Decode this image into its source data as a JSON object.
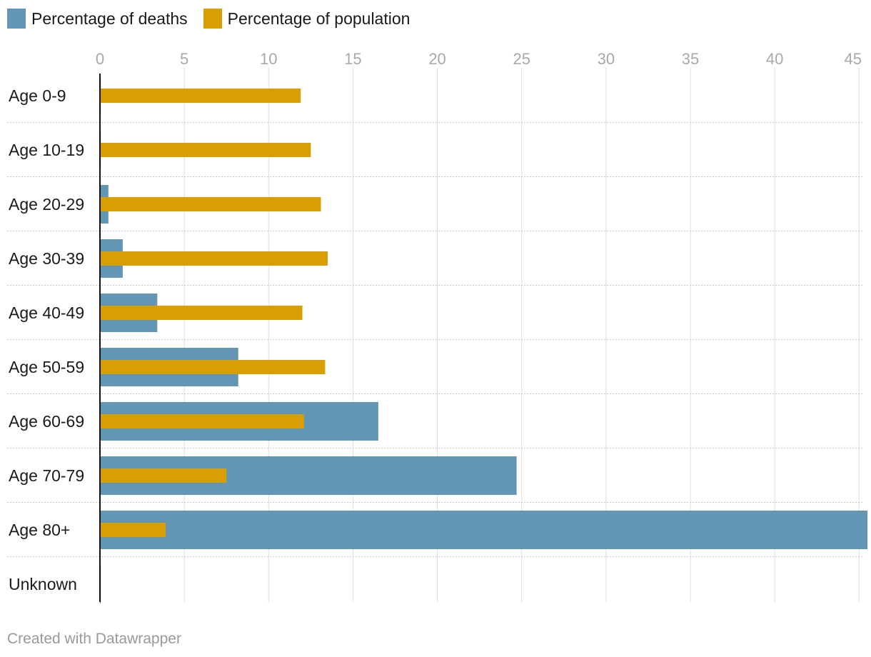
{
  "legend": {
    "deaths_label": "Percentage of deaths",
    "population_label": "Percentage of population"
  },
  "colors": {
    "deaths": "#6395b4",
    "population": "#d89f05",
    "axis_line": "#111111",
    "grid": "#dddddd",
    "tick_text": "#a9a9a9"
  },
  "footer": "Created with Datawrapper",
  "chart_data": {
    "type": "bar",
    "orientation": "horizontal",
    "categories": [
      "Age 0-9",
      "Age 10-19",
      "Age 20-29",
      "Age 30-39",
      "Age 40-49",
      "Age 50-59",
      "Age 60-69",
      "Age 70-79",
      "Age 80+",
      "Unknown"
    ],
    "series": [
      {
        "name": "Percentage of deaths",
        "values": [
          0.05,
          0.05,
          0.5,
          1.35,
          3.4,
          8.2,
          16.5,
          24.7,
          45.5,
          0.05
        ]
      },
      {
        "name": "Percentage of population",
        "values": [
          11.9,
          12.5,
          13.1,
          13.5,
          12.0,
          13.35,
          12.1,
          7.5,
          3.9,
          null
        ]
      }
    ],
    "xticks": [
      "0",
      "5",
      "10",
      "15",
      "20",
      "25",
      "30",
      "35",
      "40",
      "45"
    ],
    "xlim": [
      0,
      45.2
    ],
    "grid": true,
    "legend_position": "top-left"
  }
}
